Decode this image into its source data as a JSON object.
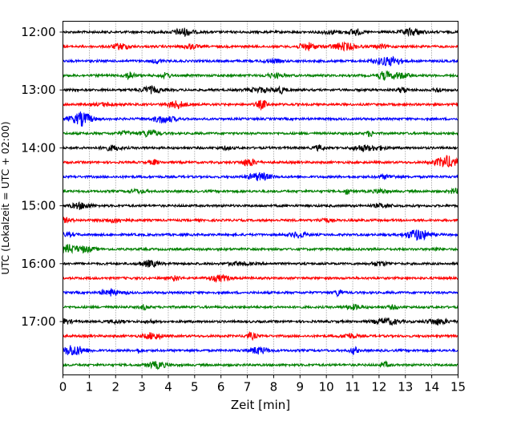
{
  "chart_data": {
    "type": "line",
    "title": "",
    "xlabel": "Zeit  [min]",
    "ylabel": "UTC (Lokalzeit = UTC + 02:00)",
    "xlim": [
      0,
      15
    ],
    "x_ticks": [
      "0",
      "1",
      "2",
      "3",
      "4",
      "5",
      "6",
      "7",
      "8",
      "9",
      "10",
      "11",
      "12",
      "13",
      "14",
      "15"
    ],
    "y_tick_labels": [
      "12:00",
      "13:00",
      "14:00",
      "15:00",
      "16:00",
      "17:00"
    ],
    "grid": "vertical dotted at each minute",
    "trace_colors": [
      "#000000",
      "#ff0000",
      "#0000ff",
      "#008000"
    ],
    "traces": [
      {
        "start": "12:00",
        "color": "#000000"
      },
      {
        "start": "12:15",
        "color": "#ff0000"
      },
      {
        "start": "12:30",
        "color": "#0000ff"
      },
      {
        "start": "12:45",
        "color": "#008000"
      },
      {
        "start": "13:00",
        "color": "#000000"
      },
      {
        "start": "13:15",
        "color": "#ff0000"
      },
      {
        "start": "13:30",
        "color": "#0000ff"
      },
      {
        "start": "13:45",
        "color": "#008000"
      },
      {
        "start": "14:00",
        "color": "#000000"
      },
      {
        "start": "14:15",
        "color": "#ff0000"
      },
      {
        "start": "14:30",
        "color": "#0000ff"
      },
      {
        "start": "14:45",
        "color": "#008000"
      },
      {
        "start": "15:00",
        "color": "#000000"
      },
      {
        "start": "15:15",
        "color": "#ff0000"
      },
      {
        "start": "15:30",
        "color": "#0000ff"
      },
      {
        "start": "15:45",
        "color": "#008000"
      },
      {
        "start": "16:00",
        "color": "#000000"
      },
      {
        "start": "16:15",
        "color": "#ff0000"
      },
      {
        "start": "16:30",
        "color": "#0000ff"
      },
      {
        "start": "16:45",
        "color": "#008000"
      },
      {
        "start": "17:00",
        "color": "#000000"
      },
      {
        "start": "17:15",
        "color": "#ff0000"
      },
      {
        "start": "17:30",
        "color": "#0000ff"
      },
      {
        "start": "17:45",
        "color": "#008000"
      }
    ]
  }
}
